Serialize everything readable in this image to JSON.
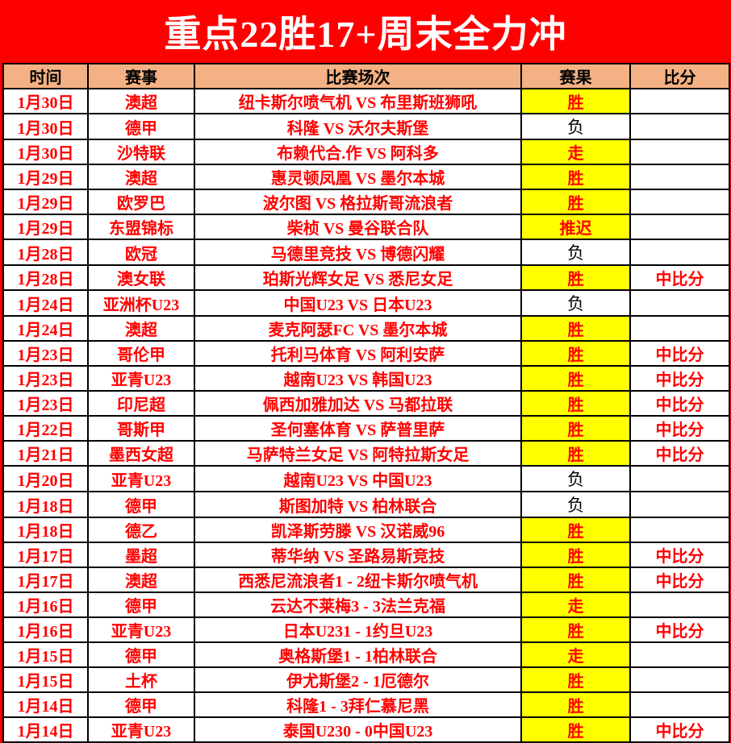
{
  "banner": {
    "title": "重点22胜17+周末全力冲",
    "bg_color": "#FE0000",
    "text_color": "#FFFFFF"
  },
  "table": {
    "headers": {
      "time": "时间",
      "league": "赛事",
      "match": "比赛场次",
      "result": "赛果",
      "score": "比分"
    },
    "header_bg": "#F4B183",
    "highlight_color": "#FFFF00",
    "win_text_color": "#FF0000",
    "loss_text_color": "#000000",
    "rows": [
      {
        "date": "1月30日",
        "league": "澳超",
        "match": "纽卡斯尔喷气机 VS 布里斯班狮吼",
        "result": "胜",
        "highlighted": true,
        "score": ""
      },
      {
        "date": "1月30日",
        "league": "德甲",
        "match": "科隆 VS 沃尔夫斯堡",
        "result": "负",
        "highlighted": false,
        "score": ""
      },
      {
        "date": "1月30日",
        "league": "沙特联",
        "match": "布赖代合.作 VS 阿科多",
        "result": "走",
        "highlighted": true,
        "score": ""
      },
      {
        "date": "1月29日",
        "league": "澳超",
        "match": "惠灵顿凤凰 VS 墨尔本城",
        "result": "胜",
        "highlighted": true,
        "score": ""
      },
      {
        "date": "1月29日",
        "league": "欧罗巴",
        "match": "波尔图 VS 格拉斯哥流浪者",
        "result": "胜",
        "highlighted": true,
        "score": ""
      },
      {
        "date": "1月29日",
        "league": "东盟锦标",
        "match": "柴桢 VS 曼谷联合队",
        "result": "推迟",
        "highlighted": true,
        "score": ""
      },
      {
        "date": "1月28日",
        "league": "欧冠",
        "match": "马德里竞技 VS 博德闪耀",
        "result": "负",
        "highlighted": false,
        "score": ""
      },
      {
        "date": "1月28日",
        "league": "澳女联",
        "match": "珀斯光辉女足 VS 悉尼女足",
        "result": "胜",
        "highlighted": true,
        "score": "中比分"
      },
      {
        "date": "1月24日",
        "league": "亚洲杯U23",
        "match": "中国U23 VS 日本U23",
        "result": "负",
        "highlighted": false,
        "score": ""
      },
      {
        "date": "1月24日",
        "league": "澳超",
        "match": "麦克阿瑟FC VS 墨尔本城",
        "result": "胜",
        "highlighted": true,
        "score": ""
      },
      {
        "date": "1月23日",
        "league": "哥伦甲",
        "match": "托利马体育 VS 阿利安萨",
        "result": "胜",
        "highlighted": true,
        "score": "中比分"
      },
      {
        "date": "1月23日",
        "league": "亚青U23",
        "match": "越南U23 VS 韩国U23",
        "result": "胜",
        "highlighted": true,
        "score": "中比分"
      },
      {
        "date": "1月23日",
        "league": "印尼超",
        "match": "佩西加雅加达 VS 马都拉联",
        "result": "胜",
        "highlighted": true,
        "score": "中比分"
      },
      {
        "date": "1月22日",
        "league": "哥斯甲",
        "match": "圣何塞体育 VS 萨普里萨",
        "result": "胜",
        "highlighted": true,
        "score": "中比分"
      },
      {
        "date": "1月21日",
        "league": "墨西女超",
        "match": "马萨特兰女足 VS 阿特拉斯女足",
        "result": "胜",
        "highlighted": true,
        "score": "中比分"
      },
      {
        "date": "1月20日",
        "league": "亚青U23",
        "match": "越南U23 VS 中国U23",
        "result": "负",
        "highlighted": false,
        "score": ""
      },
      {
        "date": "1月18日",
        "league": "德甲",
        "match": "斯图加特 VS 柏林联合",
        "result": "负",
        "highlighted": false,
        "score": ""
      },
      {
        "date": "1月18日",
        "league": "德乙",
        "match": "凯泽斯劳滕 VS 汉诺威96",
        "result": "胜",
        "highlighted": true,
        "score": ""
      },
      {
        "date": "1月17日",
        "league": "墨超",
        "match": "蒂华纳 VS 圣路易斯竞技",
        "result": "胜",
        "highlighted": true,
        "score": "中比分"
      },
      {
        "date": "1月17日",
        "league": "澳超",
        "match": "西悉尼流浪者1 - 2纽卡斯尔喷气机",
        "result": "胜",
        "highlighted": true,
        "score": "中比分"
      },
      {
        "date": "1月16日",
        "league": "德甲",
        "match": "云达不莱梅3 - 3法兰克福",
        "result": "走",
        "highlighted": true,
        "score": ""
      },
      {
        "date": "1月16日",
        "league": "亚青U23",
        "match": "日本U231 - 1约旦U23",
        "result": "胜",
        "highlighted": true,
        "score": "中比分"
      },
      {
        "date": "1月15日",
        "league": "德甲",
        "match": "奥格斯堡1 - 1柏林联合",
        "result": "走",
        "highlighted": true,
        "score": ""
      },
      {
        "date": "1月15日",
        "league": "土杯",
        "match": "伊尤斯堡2 - 1厄德尔",
        "result": "胜",
        "highlighted": true,
        "score": ""
      },
      {
        "date": "1月14日",
        "league": "德甲",
        "match": "科隆1 - 3拜仁慕尼黑",
        "result": "胜",
        "highlighted": true,
        "score": ""
      },
      {
        "date": "1月14日",
        "league": "亚青U23",
        "match": "泰国U230 - 0中国U23",
        "result": "胜",
        "highlighted": true,
        "score": "中比分"
      }
    ]
  }
}
